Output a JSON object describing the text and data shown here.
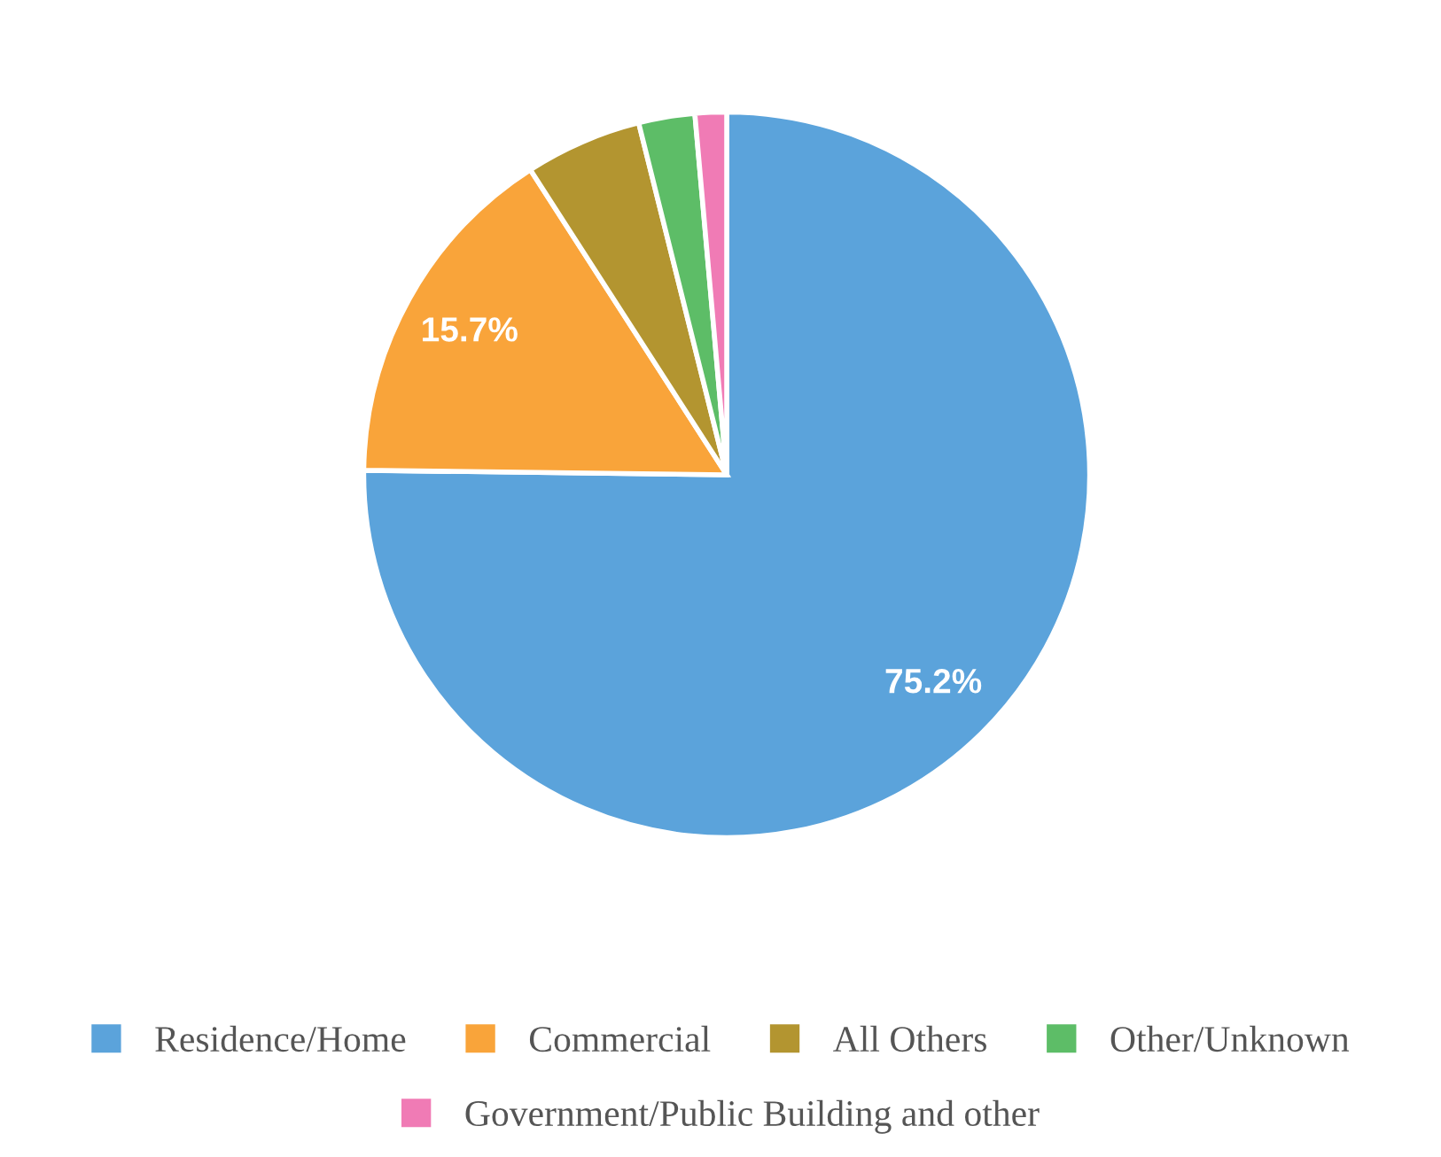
{
  "chart_data": {
    "type": "pie",
    "categories": [
      "Residence/Home",
      "Commercial",
      "All Others",
      "Other/Unknown",
      "Government/Public Building and other"
    ],
    "values": [
      75.2,
      15.7,
      5.2,
      2.5,
      1.4
    ],
    "value_labels": [
      "75.2%",
      "15.7%",
      null,
      null,
      null
    ],
    "colors": [
      "#5ba3db",
      "#f9a43a",
      "#b39530",
      "#5dbd67",
      "#f07bb5"
    ],
    "legend": "bottom"
  }
}
